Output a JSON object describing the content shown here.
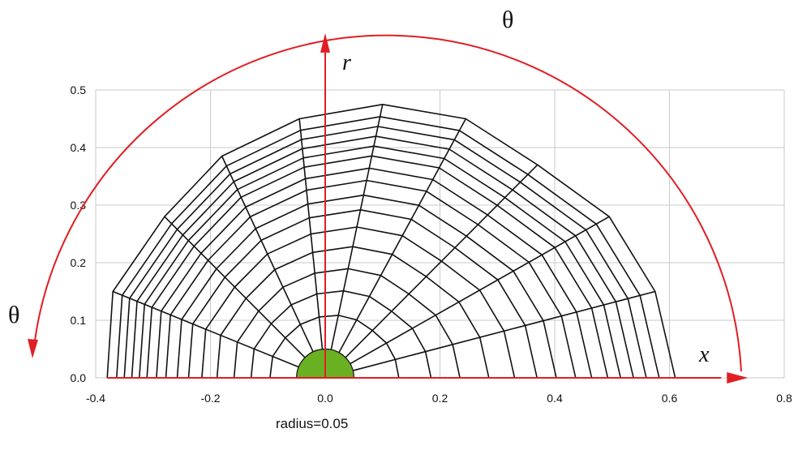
{
  "chart_data": {
    "type": "diagram",
    "x_axis": {
      "ticks": [
        -0.4,
        -0.2,
        0.0,
        0.2,
        0.4,
        0.6,
        0.8
      ],
      "tick_labels": [
        "-0.4",
        "-0.2",
        "0.0",
        "0.2",
        "0.4",
        "0.6",
        "0.8"
      ],
      "range": [
        -0.4,
        0.8
      ]
    },
    "y_axis": {
      "ticks": [
        0.0,
        0.1,
        0.2,
        0.3,
        0.4,
        0.5
      ],
      "tick_labels": [
        "0.0",
        "0.1",
        "0.2",
        "0.3",
        "0.4",
        "0.5"
      ],
      "range": [
        0.0,
        0.5
      ]
    },
    "grid": true,
    "mesh": {
      "spokes": [
        {
          "outer": [
            -0.37,
            0.15
          ]
        },
        {
          "outer": [
            -0.28,
            0.28
          ]
        },
        {
          "outer": [
            -0.18,
            0.385
          ]
        },
        {
          "outer": [
            -0.045,
            0.45
          ]
        },
        {
          "outer": [
            0.1,
            0.475
          ]
        },
        {
          "outer": [
            0.245,
            0.45
          ]
        },
        {
          "outer": [
            0.37,
            0.37
          ]
        },
        {
          "outer": [
            0.495,
            0.28
          ]
        },
        {
          "outer": [
            0.575,
            0.15
          ]
        },
        {
          "outer": [
            0.61,
            0.0
          ]
        },
        {
          "outer": [
            -0.38,
            0.0
          ]
        }
      ],
      "ring_fractions": [
        0.14,
        0.24,
        0.33,
        0.42,
        0.5,
        0.57,
        0.63,
        0.69,
        0.74,
        0.79,
        0.83,
        0.87,
        0.91,
        0.95,
        1.0
      ]
    },
    "core": {
      "radius": 0.05,
      "color": "#6ab023"
    },
    "annotations": {
      "theta_top": "θ",
      "theta_left": "θ",
      "r_label": "r",
      "x_label": "x",
      "radius_label": "radius=0.05"
    },
    "arrow_color": "#e01e24"
  }
}
